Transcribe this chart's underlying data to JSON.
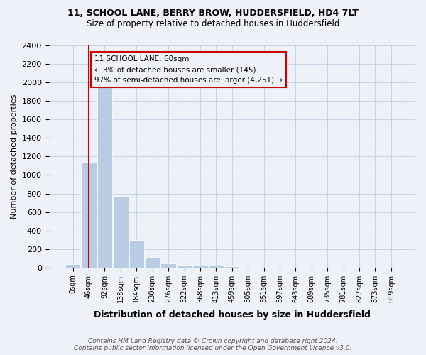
{
  "title_line1": "11, SCHOOL LANE, BERRY BROW, HUDDERSFIELD, HD4 7LT",
  "title_line2": "Size of property relative to detached houses in Huddersfield",
  "xlabel": "Distribution of detached houses by size in Huddersfield",
  "ylabel": "Number of detached properties",
  "bar_color": "#b8cce4",
  "grid_color": "#c8d4e8",
  "vline_color": "#cc0000",
  "vline_x": 1,
  "annotation_box_color": "#cc0000",
  "annotation_text": "11 SCHOOL LANE: 60sqm\n← 3% of detached houses are smaller (145)\n97% of semi-detached houses are larger (4,251) →",
  "footer_text": "Contains HM Land Registry data © Crown copyright and database right 2024.\nContains public sector information licensed under the Open Government Licence v3.0.",
  "bin_labels": [
    "0sqm",
    "46sqm",
    "92sqm",
    "138sqm",
    "184sqm",
    "230sqm",
    "276sqm",
    "322sqm",
    "368sqm",
    "413sqm",
    "459sqm",
    "505sqm",
    "551sqm",
    "597sqm",
    "643sqm",
    "689sqm",
    "735sqm",
    "781sqm",
    "827sqm",
    "873sqm",
    "919sqm"
  ],
  "bar_heights": [
    40,
    1140,
    1960,
    770,
    295,
    110,
    45,
    30,
    20,
    20,
    15,
    0,
    0,
    0,
    0,
    0,
    0,
    0,
    0,
    0,
    0
  ],
  "ylim": [
    0,
    2400
  ],
  "yticks": [
    0,
    200,
    400,
    600,
    800,
    1000,
    1200,
    1400,
    1600,
    1800,
    2000,
    2200,
    2400
  ],
  "figsize": [
    6.0,
    5.0
  ],
  "dpi": 100,
  "background_color": "#eef2f8"
}
